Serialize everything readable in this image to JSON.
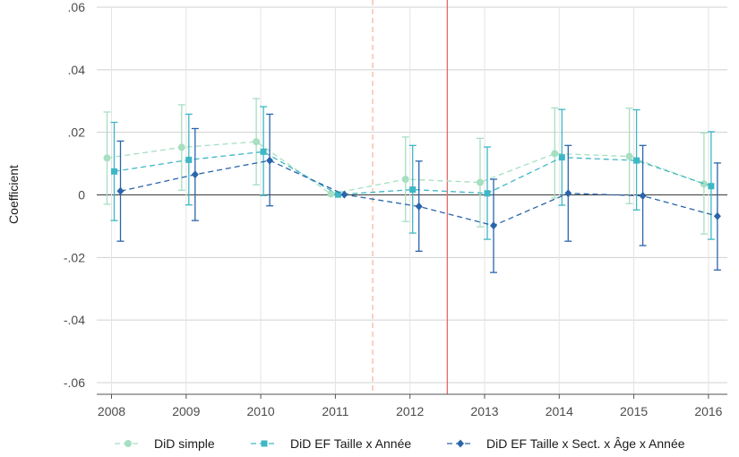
{
  "chart_data": {
    "type": "line",
    "ylabel": "Coefficient",
    "xlabel": "",
    "title": "",
    "categories": [
      "2008",
      "2009",
      "2010",
      "2011",
      "2012",
      "2013",
      "2014",
      "2015",
      "2016"
    ],
    "ylim": [
      -0.065,
      0.06
    ],
    "yticks": [
      0.06,
      0.04,
      0.02,
      0,
      -0.02,
      -0.04,
      -0.06
    ],
    "ytick_labels": [
      ".06",
      ".04",
      ".02",
      "0",
      "-.02",
      "-.04",
      "-.06"
    ],
    "grid": true,
    "legend_position": "bottom",
    "reference_lines": [
      {
        "x_between": [
          "2011",
          "2012"
        ],
        "style": "dashed",
        "color": "#f4b9a3"
      },
      {
        "x_between": [
          "2012",
          "2013"
        ],
        "style": "solid",
        "color": "#e8696a"
      }
    ],
    "series": [
      {
        "name": "DiD simple",
        "color": "#a6dfc1",
        "marker": "circle",
        "values": [
          0.0118,
          0.0152,
          0.017,
          0.0003,
          0.005,
          0.004,
          0.0132,
          0.0123,
          0.0035
        ],
        "ci_low": [
          -0.003,
          0.0015,
          0.0032,
          0.0003,
          -0.0085,
          -0.0102,
          -0.001,
          -0.0028,
          -0.0125
        ],
        "ci_high": [
          0.0265,
          0.0288,
          0.0308,
          0.0003,
          0.0185,
          0.0181,
          0.0278,
          0.0277,
          0.0198
        ]
      },
      {
        "name": "DiD EF Taille x Année",
        "color": "#3eb7c6",
        "marker": "square",
        "values": [
          0.0075,
          0.0112,
          0.0138,
          0.0001,
          0.0017,
          0.0005,
          0.012,
          0.011,
          0.0028
        ],
        "ci_low": [
          -0.0082,
          -0.0032,
          -0.0002,
          0.0001,
          -0.0122,
          -0.0142,
          -0.0033,
          -0.0048,
          -0.0142
        ],
        "ci_high": [
          0.0232,
          0.0258,
          0.0282,
          0.0001,
          0.0158,
          0.0153,
          0.0273,
          0.0272,
          0.0202
        ]
      },
      {
        "name": "DiD EF Taille x Sect. x Âge x Année",
        "color": "#2a64ab",
        "marker": "diamond",
        "values": [
          0.0012,
          0.0065,
          0.011,
          0.0001,
          -0.0037,
          -0.0098,
          0.0005,
          -0.0003,
          -0.0068
        ],
        "ci_low": [
          -0.0148,
          -0.0082,
          -0.0035,
          0.0001,
          -0.018,
          -0.0248,
          -0.0148,
          -0.0162,
          -0.024
        ],
        "ci_high": [
          0.0172,
          0.0212,
          0.0258,
          0.0001,
          0.0108,
          0.005,
          0.0158,
          0.0158,
          0.0102
        ]
      }
    ]
  }
}
